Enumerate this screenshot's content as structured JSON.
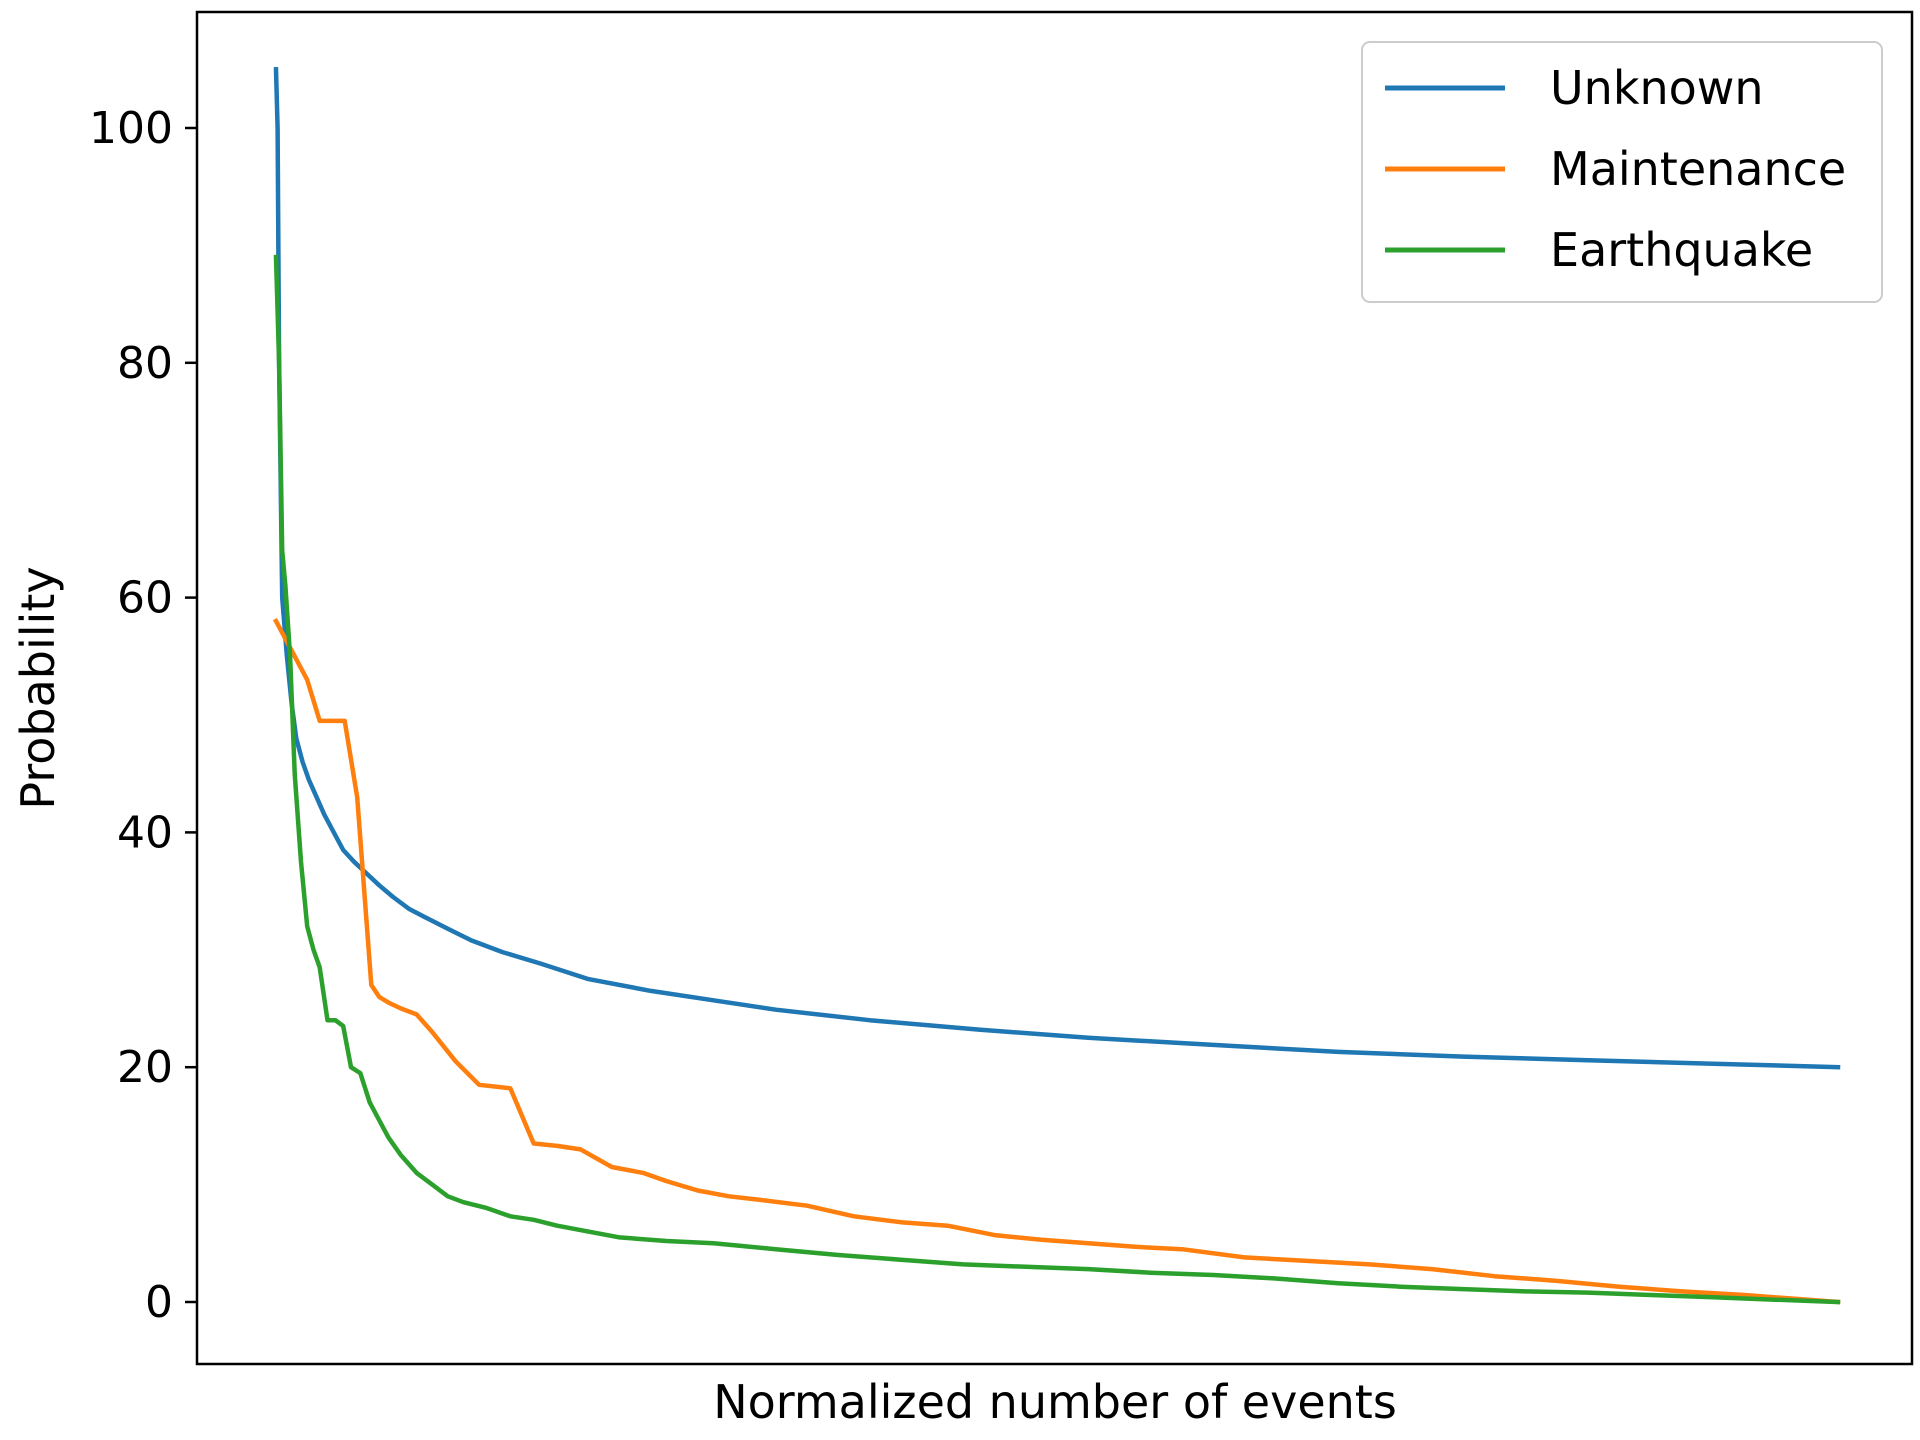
{
  "chart_data": {
    "type": "line",
    "xlabel": "Normalized number of events",
    "ylabel": "Probability",
    "xlim": [
      0,
      1
    ],
    "ylim": [
      -5,
      110
    ],
    "yticks": [
      0,
      20,
      40,
      60,
      80,
      100
    ],
    "xticks_shown": false,
    "grid": false,
    "legend_position": "top-right",
    "series": [
      {
        "name": "Unknown",
        "color": "#1f77b4",
        "x": [
          0.0,
          0.001,
          0.002,
          0.004,
          0.007,
          0.01,
          0.013,
          0.017,
          0.021,
          0.026,
          0.031,
          0.037,
          0.043,
          0.05,
          0.058,
          0.066,
          0.075,
          0.085,
          0.095,
          0.11,
          0.125,
          0.145,
          0.17,
          0.2,
          0.24,
          0.28,
          0.32,
          0.38,
          0.45,
          0.52,
          0.6,
          0.68,
          0.76,
          0.84,
          0.92,
          1.0
        ],
        "y": [
          105,
          100,
          80,
          60,
          55,
          51,
          48,
          46,
          44.5,
          43,
          41.5,
          40,
          38.5,
          37.5,
          36.5,
          35.5,
          34.5,
          33.5,
          32.8,
          31.8,
          30.8,
          29.8,
          28.8,
          27.5,
          26.5,
          25.7,
          24.9,
          24.0,
          23.2,
          22.5,
          21.9,
          21.3,
          20.9,
          20.6,
          20.3,
          20.0
        ]
      },
      {
        "name": "Maintenance",
        "color": "#ff7f0e",
        "x": [
          0.0,
          0.012,
          0.02,
          0.028,
          0.036,
          0.044,
          0.052,
          0.061,
          0.066,
          0.072,
          0.08,
          0.09,
          0.1,
          0.115,
          0.13,
          0.15,
          0.165,
          0.18,
          0.195,
          0.215,
          0.235,
          0.25,
          0.27,
          0.29,
          0.31,
          0.34,
          0.37,
          0.4,
          0.43,
          0.46,
          0.49,
          0.52,
          0.55,
          0.58,
          0.62,
          0.66,
          0.7,
          0.74,
          0.78,
          0.82,
          0.86,
          0.9,
          0.94,
          0.97,
          1.0
        ],
        "y": [
          58,
          55,
          53,
          49.5,
          49.5,
          49.5,
          43,
          27,
          26,
          25.5,
          25,
          24.5,
          23,
          20.5,
          18.5,
          18.2,
          13.5,
          13.3,
          13.0,
          11.5,
          11.0,
          10.3,
          9.5,
          9.0,
          8.7,
          8.2,
          7.3,
          6.8,
          6.5,
          5.7,
          5.3,
          5.0,
          4.7,
          4.5,
          3.8,
          3.5,
          3.2,
          2.8,
          2.2,
          1.8,
          1.3,
          0.9,
          0.6,
          0.3,
          0.0
        ]
      },
      {
        "name": "Earthquake",
        "color": "#2ca02c",
        "x": [
          0.0,
          0.002,
          0.004,
          0.006,
          0.009,
          0.012,
          0.016,
          0.02,
          0.024,
          0.028,
          0.033,
          0.038,
          0.043,
          0.048,
          0.054,
          0.06,
          0.066,
          0.072,
          0.08,
          0.09,
          0.1,
          0.11,
          0.12,
          0.135,
          0.15,
          0.165,
          0.18,
          0.2,
          0.22,
          0.25,
          0.28,
          0.32,
          0.36,
          0.4,
          0.44,
          0.48,
          0.52,
          0.56,
          0.6,
          0.64,
          0.68,
          0.72,
          0.76,
          0.8,
          0.84,
          0.88,
          0.92,
          0.96,
          1.0
        ],
        "y": [
          89,
          80,
          64,
          61,
          55,
          45,
          37.5,
          32,
          30,
          28.5,
          24,
          24,
          23.5,
          20,
          19.5,
          17,
          15.5,
          14,
          12.5,
          11,
          10,
          9,
          8.5,
          8,
          7.3,
          7,
          6.5,
          6,
          5.5,
          5.2,
          5,
          4.5,
          4,
          3.6,
          3.2,
          3,
          2.8,
          2.5,
          2.3,
          2,
          1.6,
          1.3,
          1.1,
          0.9,
          0.8,
          0.6,
          0.4,
          0.2,
          0.0
        ]
      }
    ]
  }
}
